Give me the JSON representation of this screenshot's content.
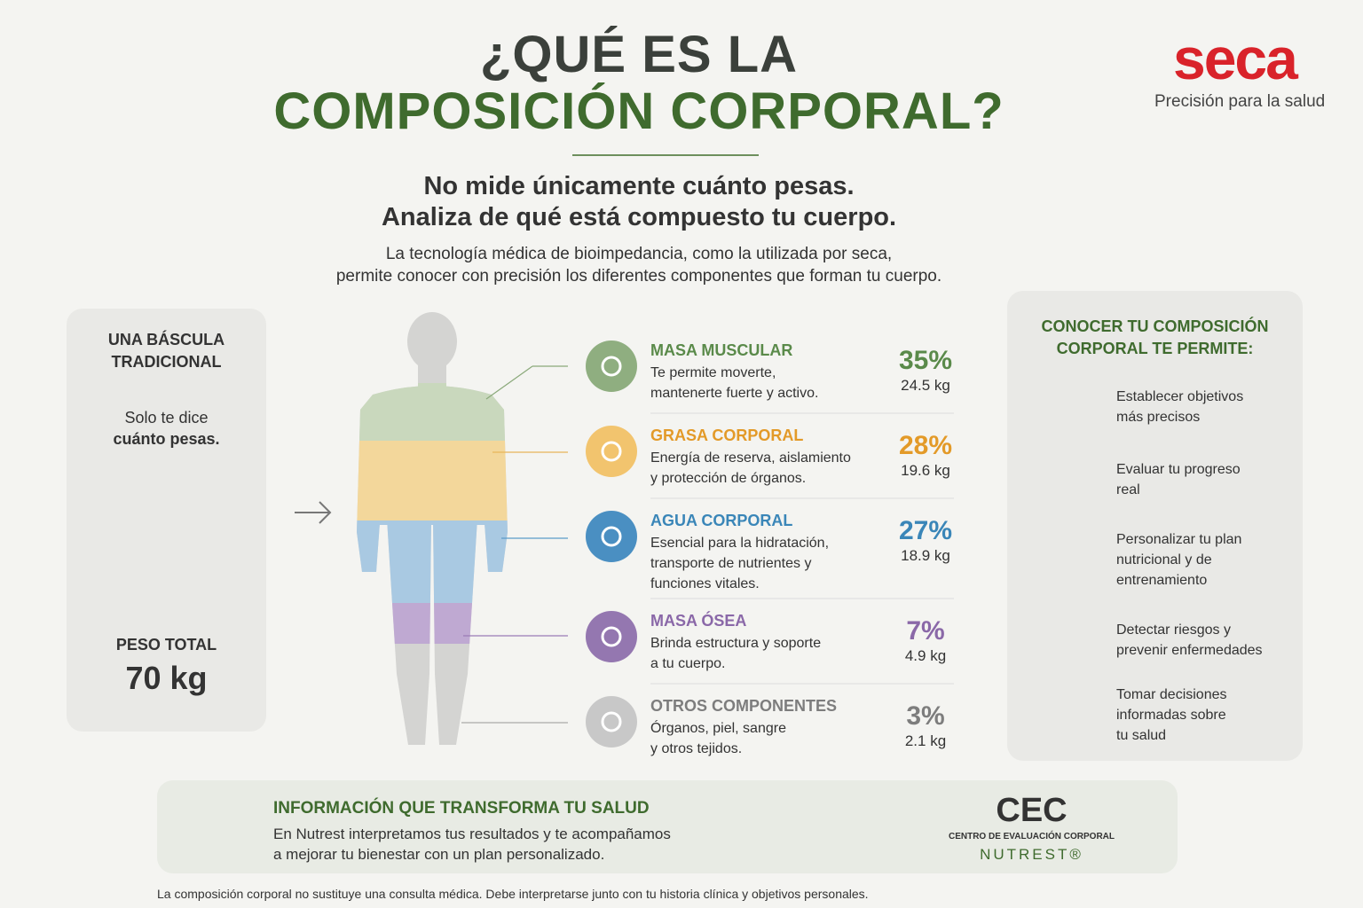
{
  "header": {
    "title_line1": "¿QUÉ ES LA",
    "title_line2": "COMPOSICIÓN CORPORAL?",
    "logo": {
      "brand": "seca",
      "tagline": "Precisión para la salud"
    }
  },
  "intro": {
    "headline": [
      "No mide únicamente cuánto pesas.",
      "Analiza de qué está compuesto tu cuerpo."
    ],
    "body": [
      "La tecnología médica de bioimpedancia, como la utilizada por seca,",
      "permite conocer con precisión los diferentes componentes que forman tu cuerpo."
    ]
  },
  "traditional_scale": {
    "title": [
      "UNA BÁSCULA",
      "TRADICIONAL"
    ],
    "text": [
      "Solo te dice",
      "cuánto pesas."
    ],
    "weight_label": "PESO TOTAL",
    "weight_value": "70 kg"
  },
  "components": [
    {
      "name": "MASA MUSCULAR",
      "description": [
        "Te permite moverte,",
        "mantenerte fuerte y activo."
      ],
      "percent": "35%",
      "weight": "24.5 kg"
    },
    {
      "name": "GRASA CORPORAL",
      "description": [
        "Energía de reserva, aislamiento",
        "y protección de órganos."
      ],
      "percent": "28%",
      "weight": "19.6 kg"
    },
    {
      "name": "AGUA CORPORAL",
      "description": [
        "Esencial para la hidratación,",
        "transporte de nutrientes y",
        "funciones vitales."
      ],
      "percent": "27%",
      "weight": "18.9 kg"
    },
    {
      "name": "MASA ÓSEA",
      "description": [
        "Brinda estructura y soporte",
        "a tu cuerpo."
      ],
      "percent": "7%",
      "weight": "4.9 kg"
    },
    {
      "name": "OTROS COMPONENTES",
      "description": [
        "Órganos, piel, sangre",
        "y otros tejidos."
      ],
      "percent": "3%",
      "weight": "2.1 kg"
    }
  ],
  "benefits": {
    "title": [
      "CONOCER TU COMPOSICIÓN",
      "CORPORAL TE PERMITE:"
    ],
    "items": [
      {
        "text": [
          "Establecer objetivos",
          "más precisos"
        ]
      },
      {
        "text": [
          "Evaluar tu progreso",
          "real"
        ]
      },
      {
        "text": [
          "Personalizar tu plan",
          "nutricional y de",
          "entrenamiento"
        ]
      },
      {
        "text": [
          "Detectar riesgos y",
          "prevenir enfermedades"
        ]
      },
      {
        "text": [
          "Tomar decisiones",
          "informadas sobre",
          "tu salud"
        ]
      }
    ]
  },
  "banner": {
    "title": "INFORMACIÓN QUE TRANSFORMA TU SALUD",
    "text": [
      "En Nutrest interpretamos tus resultados y te acompañamos",
      "a mejorar tu bienestar con un plan personalizado."
    ],
    "partner": {
      "acronym": "CEC",
      "name": "CENTRO DE EVALUACIÓN CORPORAL",
      "brand": "NUTREST®"
    }
  },
  "footnote": "La composición corporal no sustituye una consulta médica. Debe interpretarse junto con tu historia clínica y objetivos personales."
}
